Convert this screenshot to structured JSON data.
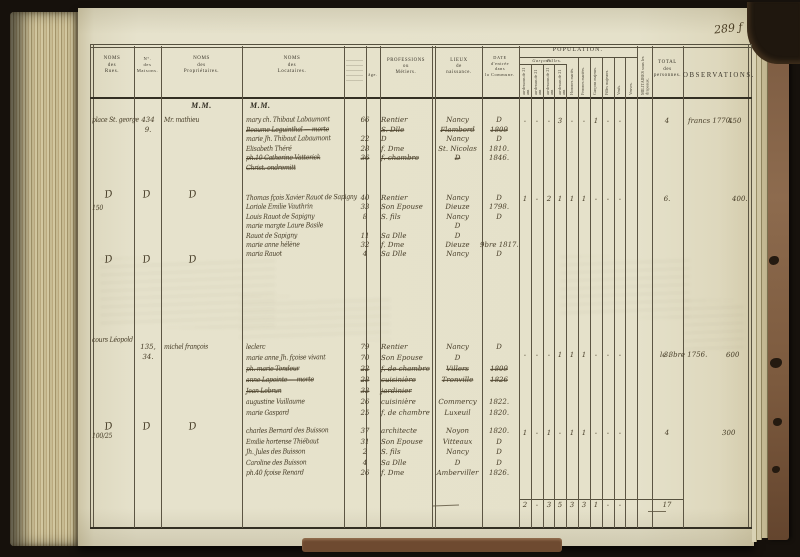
{
  "page_number": "289 ƒ",
  "ditto": "D",
  "header": {
    "rues": "NOMS\ndes\nRues.",
    "maisons": "N°.\ndes\nMaisons.",
    "proprietaires": "NOMS\ndes\nPropriétaires.",
    "locataires": "NOMS\ndes\nLocataires.",
    "age": "âge.",
    "professions": "PROFESSIONS\nou\nMétiers.",
    "lieux": "LIEUX\nde\nnaissance.",
    "date": "DATE\nd'entrée\ndans\nla Commune.",
    "population": "POPULATION.",
    "pop_groups": [
      "Garçons.",
      "Filles."
    ],
    "pop_cols": [
      "au-dessous de 21 ans",
      "au-dessus de 21 ans",
      "au-dessous de 21 ans",
      "au-dessus de 21 ans",
      "Hommes mariés.",
      "Femmes mariées.",
      "Garçons majeurs.",
      "Filles majeures.",
      "Veufs.",
      "Veuves."
    ],
    "militaires": "MILITAIRES sous les drapeaux.",
    "total": "TOTAL\ndes\npersonnes.",
    "observations": "OBSERVATIONS.",
    "mm_left": "M.M.",
    "mm_right": "M.M."
  },
  "groups": [
    {
      "street": "place St. george",
      "house": "434",
      "house2": "9.",
      "proprietor": "Mr. mathieu",
      "dittos": [],
      "dittos2": [],
      "rows": [
        {
          "name": "mary ch. Thibaut Labaumont",
          "age": "66",
          "prof": "Rentier",
          "lieu": "Nancy",
          "date": "D",
          "s": false,
          "lieu_s": false,
          "date_s": false
        },
        {
          "name": "Beaume Leguinthal — morte",
          "age": "",
          "prof": "S. Dlle",
          "lieu": "Flambord",
          "date": "1809",
          "s": true,
          "lieu_s": true,
          "date_s": true
        },
        {
          "name": "marie Jh. Thibaut Labaumont",
          "age": "22",
          "prof": "D",
          "lieu": "Nancy",
          "date": "D",
          "s": false,
          "lieu_s": false,
          "date_s": false
        },
        {
          "name": "Elisabeth Théré",
          "age": "28",
          "prof": "f. Dme",
          "lieu": "St. Nicolas",
          "date": "1810.",
          "s": false,
          "lieu_s": false,
          "date_s": false
        },
        {
          "name": "ph.10 Catherine Vatterick",
          "age": "36",
          "prof": "f. chambre",
          "lieu": "D",
          "date": "1846.",
          "s": true,
          "lieu_s": true,
          "date_s": false
        },
        {
          "name": "Christ. ondremitt",
          "age": "",
          "prof": "",
          "lieu": "",
          "date": "",
          "s": true,
          "lieu_s": false,
          "date_s": false
        }
      ],
      "pop": [
        "-",
        "-",
        "-",
        "3",
        "-",
        "-",
        "1",
        "-",
        "-",
        ""
      ],
      "total": "4",
      "obs": "francs 1770.",
      "obs2": "450"
    },
    {
      "street": "150",
      "house": "",
      "house2": "",
      "proprietor": "",
      "dittos": [
        "rues",
        "maisons",
        "prop"
      ],
      "dittos2": [
        "rues",
        "maisons",
        "prop"
      ],
      "rows": [
        {
          "name": "Thomas fçois Xavier Rauot de Sapigny",
          "age": "40",
          "prof": "Rentier",
          "lieu": "Nancy",
          "date": "D",
          "s": false,
          "lieu_s": false,
          "date_s": false
        },
        {
          "name": "Loriole Emilie Vauthrin",
          "age": "33",
          "prof": "Son Epouse",
          "lieu": "Dieuze",
          "date": "1798.",
          "s": false,
          "lieu_s": false,
          "date_s": false
        },
        {
          "name": "Louis Rauot de Sapigny",
          "age": "8",
          "prof": "S. fils",
          "lieu": "Nancy",
          "date": "D",
          "s": false,
          "lieu_s": false,
          "date_s": false
        },
        {
          "name": "marie margte Laure Basile",
          "age": "",
          "prof": "",
          "lieu": "D",
          "date": "",
          "s": false,
          "lieu_s": false,
          "date_s": false
        },
        {
          "name": "Rauot de Sapigny",
          "age": "11",
          "prof": "Sa Dlle",
          "lieu": "D",
          "date": "",
          "s": false,
          "lieu_s": false,
          "date_s": false
        },
        {
          "name": "marie anne hélène",
          "age": "32",
          "prof": "f. Dme",
          "lieu": "Dieuze",
          "date": "9bre 1817.",
          "s": false,
          "lieu_s": false,
          "date_s": false
        },
        {
          "name": "maria Rauot",
          "age": "4",
          "prof": "Sa Dlle",
          "lieu": "Nancy",
          "date": "D",
          "s": false,
          "lieu_s": false,
          "date_s": false
        }
      ],
      "pop": [
        "1",
        "-",
        "2",
        "1",
        "1",
        "1",
        "-",
        "-",
        "-",
        ""
      ],
      "total": "6.",
      "obs": "",
      "obs2": "400."
    },
    {
      "street": "cours Léopold",
      "house": "135,",
      "house2": "34.",
      "proprietor": "michel françois",
      "dittos": [],
      "dittos2": [],
      "rows": [
        {
          "name": "leclerc",
          "age": "79",
          "prof": "Rentier",
          "lieu": "Nancy",
          "date": "D",
          "s": false,
          "lieu_s": false,
          "date_s": false
        },
        {
          "name": "marie anne Jh. fçoise vivant",
          "age": "70",
          "prof": "Son Epouse",
          "lieu": "D",
          "date": "",
          "s": false,
          "lieu_s": false,
          "date_s": false
        },
        {
          "name": "ph. marie Tondeur",
          "age": "22",
          "prof": "f. de chambre",
          "lieu": "Villers",
          "date": "1809",
          "s": true,
          "lieu_s": true,
          "date_s": true
        },
        {
          "name": "anne Lapointe — morte",
          "age": "28",
          "prof": "cuisinière",
          "lieu": "Tronville",
          "date": "1826",
          "s": true,
          "lieu_s": true,
          "date_s": true
        },
        {
          "name": "Jean Lebrun",
          "age": "33",
          "prof": "jardinier",
          "lieu": "",
          "date": "",
          "s": true,
          "lieu_s": false,
          "date_s": false
        },
        {
          "name": "augustine Vuillaume",
          "age": "26",
          "prof": "cuisinière",
          "lieu": "Commercy",
          "date": "1822.",
          "s": false,
          "lieu_s": false,
          "date_s": false
        },
        {
          "name": "marie Gaspard",
          "age": "25",
          "prof": "f. de chambre",
          "lieu": "Luxeuil",
          "date": "1820.",
          "s": false,
          "lieu_s": false,
          "date_s": false
        }
      ],
      "pop": [
        "-",
        "-",
        "-",
        "1",
        "1",
        "1",
        "-",
        "-",
        "-",
        ""
      ],
      "total": "3.",
      "obs": "le 8bre 1756.",
      "obs2": "600"
    },
    {
      "street": "100/25",
      "house": "",
      "house2": "",
      "proprietor": "",
      "dittos": [
        "rues",
        "maisons",
        "prop"
      ],
      "dittos2": [],
      "rows": [
        {
          "name": "charles Bernard des Buisson",
          "age": "37",
          "prof": "architecte",
          "lieu": "Noyon",
          "date": "1820.",
          "s": false,
          "lieu_s": false,
          "date_s": false
        },
        {
          "name": "Emilie hortense Thiébaut",
          "age": "31",
          "prof": "Son Epouse",
          "lieu": "Vitteaux",
          "date": "D",
          "s": false,
          "lieu_s": false,
          "date_s": false
        },
        {
          "name": "Jh. Jules des Buisson",
          "age": "2",
          "prof": "S. fils",
          "lieu": "Nancy",
          "date": "D",
          "s": false,
          "lieu_s": false,
          "date_s": false
        },
        {
          "name": "Caroline des Buisson",
          "age": "4",
          "prof": "Sa Dlle",
          "lieu": "D",
          "date": "D",
          "s": false,
          "lieu_s": false,
          "date_s": false
        },
        {
          "name": "ph.40 fçoise Renard",
          "age": "26",
          "prof": "f. Dme",
          "lieu": "Amberviller",
          "date": "1826.",
          "s": false,
          "lieu_s": false,
          "date_s": false
        }
      ],
      "pop": [
        "1",
        "-",
        "1",
        "-",
        "1",
        "1",
        "-",
        "-",
        "-",
        ""
      ],
      "total": "4",
      "obs": "",
      "obs2": "300"
    }
  ],
  "totals": {
    "pop": [
      "2",
      "-",
      "3",
      "5",
      "3",
      "3",
      "1",
      "-",
      "-",
      ""
    ],
    "total": "17"
  }
}
